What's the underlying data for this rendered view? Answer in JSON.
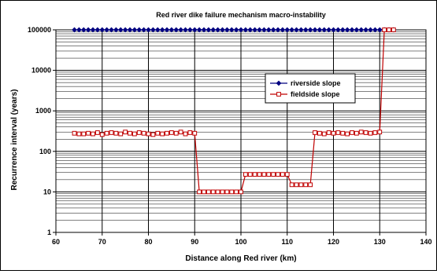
{
  "chart_data": {
    "type": "line",
    "title": "Red river dike failure mechanism macro-instability",
    "xlabel": "Distance along Red river (km)",
    "ylabel": "Recurrence interval (years)",
    "xlim": [
      60,
      140
    ],
    "ylim": [
      1,
      100000
    ],
    "yscale": "log",
    "xticks": [
      60,
      70,
      80,
      90,
      100,
      110,
      120,
      130,
      140
    ],
    "yticks": [
      1,
      10,
      100,
      1000,
      10000,
      100000
    ],
    "ytick_labels": [
      "1",
      "10",
      "100",
      "1000",
      "10000",
      "100000"
    ],
    "grid": true,
    "legend_position": "center-right",
    "series": [
      {
        "name": "riverside slope",
        "color": "#000080",
        "marker": "diamond",
        "x": [
          64,
          65,
          66,
          67,
          68,
          69,
          70,
          71,
          72,
          73,
          74,
          75,
          76,
          77,
          78,
          79,
          80,
          81,
          82,
          83,
          84,
          85,
          86,
          87,
          88,
          89,
          90,
          91,
          92,
          93,
          94,
          95,
          96,
          97,
          98,
          99,
          100,
          101,
          102,
          103,
          104,
          105,
          106,
          107,
          108,
          109,
          110,
          111,
          112,
          113,
          114,
          115,
          116,
          117,
          118,
          119,
          120,
          121,
          122,
          123,
          124,
          125,
          126,
          127,
          128,
          129,
          130,
          131,
          132,
          133
        ],
        "y": [
          100000,
          100000,
          100000,
          100000,
          100000,
          100000,
          100000,
          100000,
          100000,
          100000,
          100000,
          100000,
          100000,
          100000,
          100000,
          100000,
          100000,
          100000,
          100000,
          100000,
          100000,
          100000,
          100000,
          100000,
          100000,
          100000,
          100000,
          100000,
          100000,
          100000,
          100000,
          100000,
          100000,
          100000,
          100000,
          100000,
          100000,
          100000,
          100000,
          100000,
          100000,
          100000,
          100000,
          100000,
          100000,
          100000,
          100000,
          100000,
          100000,
          100000,
          100000,
          100000,
          100000,
          100000,
          100000,
          100000,
          100000,
          100000,
          100000,
          100000,
          100000,
          100000,
          100000,
          100000,
          100000,
          100000,
          100000,
          100000,
          100000,
          100000
        ]
      },
      {
        "name": "fieldside slope",
        "color": "#C00000",
        "marker": "square",
        "x": [
          64,
          65,
          66,
          67,
          68,
          69,
          70,
          71,
          72,
          73,
          74,
          75,
          76,
          77,
          78,
          79,
          80,
          81,
          82,
          83,
          84,
          85,
          86,
          87,
          88,
          89,
          90,
          91,
          92,
          93,
          94,
          95,
          96,
          97,
          98,
          99,
          100,
          101,
          102,
          103,
          104,
          105,
          106,
          107,
          108,
          109,
          110,
          111,
          112,
          113,
          114,
          115,
          116,
          117,
          118,
          119,
          120,
          121,
          122,
          123,
          124,
          125,
          126,
          127,
          128,
          129,
          130,
          131,
          132,
          133
        ],
        "y": [
          280,
          270,
          270,
          280,
          270,
          290,
          260,
          280,
          290,
          280,
          270,
          300,
          280,
          270,
          290,
          280,
          270,
          260,
          280,
          270,
          280,
          290,
          280,
          300,
          270,
          290,
          280,
          10,
          10,
          10,
          10,
          10,
          10,
          10,
          10,
          10,
          10,
          27,
          27,
          27,
          27,
          27,
          27,
          27,
          27,
          27,
          27,
          15,
          15,
          15,
          15,
          15,
          290,
          280,
          270,
          290,
          280,
          290,
          280,
          270,
          290,
          280,
          300,
          290,
          280,
          290,
          300,
          100000,
          100000,
          100000
        ]
      }
    ]
  }
}
